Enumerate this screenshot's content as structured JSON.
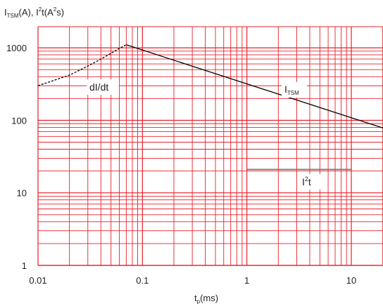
{
  "chart_data": {
    "type": "line",
    "title": "",
    "ylabel": {
      "base": "I",
      "sub": "TSM",
      "rest1": "(A), I",
      "sup": "2",
      "rest2": "t(A",
      "sup2": "2",
      "rest3": "s)"
    },
    "xlabel": {
      "base": "t",
      "sub": "p",
      "rest": "(ms)"
    },
    "x_scale": "log",
    "y_scale": "log",
    "xlim": [
      0.01,
      30
    ],
    "ylim": [
      1,
      2000
    ],
    "x_ticks": [
      {
        "value": 0.01,
        "label": "0.01"
      },
      {
        "value": 0.1,
        "label": "0.1"
      },
      {
        "value": 1,
        "label": "1"
      },
      {
        "value": 10,
        "label": "10"
      }
    ],
    "y_ticks": [
      {
        "value": 1,
        "label": "1"
      },
      {
        "value": 10,
        "label": "10"
      },
      {
        "value": 100,
        "label": "100"
      },
      {
        "value": 1000,
        "label": "1000"
      }
    ],
    "grid": true,
    "grid_color": "#e8202a",
    "series": [
      {
        "key": "di_dt",
        "label": "dI/dt",
        "style": "dashed",
        "color": "#000000",
        "x": [
          0.01,
          0.02,
          0.03,
          0.04,
          0.05,
          0.06,
          0.07
        ],
        "y": [
          300,
          420,
          560,
          700,
          840,
          980,
          1100
        ]
      },
      {
        "key": "itsm",
        "label": {
          "base": "I",
          "sub": "TSM"
        },
        "style": "solid",
        "color": "#000000",
        "x": [
          0.07,
          30
        ],
        "y": [
          1100,
          65
        ]
      },
      {
        "key": "i2t",
        "label": {
          "base": "I",
          "sup": "2",
          "rest": "t"
        },
        "style": "solid",
        "color": "#777777",
        "x": [
          1,
          10
        ],
        "y": [
          21,
          21
        ]
      }
    ]
  }
}
